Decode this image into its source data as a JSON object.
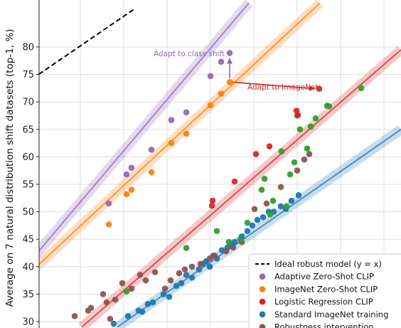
{
  "chart_data": {
    "type": "scatter",
    "ylabel": "Average on 7 natural distribution shift datasets (top-1, %)",
    "ylim": [
      29,
      87
    ],
    "yticks": [
      30,
      35,
      40,
      45,
      50,
      55,
      60,
      65,
      70,
      75,
      80
    ],
    "grid": true,
    "legend_position": "bottom-right",
    "colors": {
      "adaptive": "#9467bd",
      "zeroshot": "#ff7f0e",
      "logistic": "#d62728",
      "standard": "#1f77b4",
      "robust": "#8c564b",
      "green": "#2ca02c",
      "ideal": "#000000"
    },
    "ideal_line": {
      "name": "Ideal robust model (y = x)",
      "points": [
        [
          0,
          70.2
        ],
        [
          190,
          87
        ]
      ]
    },
    "series": [
      {
        "name": "Adaptive Zero-Shot CLIP",
        "key": "adaptive",
        "fit": [
          [
            0,
            34.5
          ],
          [
            350,
            88
          ]
        ],
        "points": [
          [
            153,
            51.5
          ],
          [
            178,
            56.8
          ],
          [
            185,
            58.0
          ],
          [
            213,
            61.3
          ],
          [
            241,
            66.7
          ],
          [
            262,
            68.1
          ],
          [
            296,
            74.7
          ],
          [
            311,
            77.3
          ],
          [
            323,
            78.9
          ]
        ]
      },
      {
        "name": "ImageNet Zero-Shot CLIP",
        "key": "zeroshot",
        "fit": [
          [
            0,
            33.8
          ],
          [
            450,
            88
          ]
        ],
        "points": [
          [
            153,
            47.7
          ],
          [
            178,
            53.2
          ],
          [
            185,
            54.0
          ],
          [
            213,
            57.2
          ],
          [
            241,
            62.5
          ],
          [
            262,
            64.2
          ],
          [
            296,
            69.4
          ],
          [
            311,
            71.5
          ],
          [
            323,
            73.6
          ]
        ]
      },
      {
        "name": "Logistic Regression CLIP",
        "key": "logistic",
        "fit": [
          [
            115,
            29
          ],
          [
            564,
            79.5
          ]
        ],
        "points": [
          [
            298,
            51.1
          ],
          [
            299,
            52.0
          ],
          [
            330,
            55.5
          ],
          [
            360,
            60.5
          ],
          [
            379,
            61.9
          ],
          [
            417,
            68.4
          ],
          [
            419,
            67.6
          ],
          [
            449,
            72.4
          ]
        ]
      },
      {
        "name": "Standard ImageNet training",
        "key": "standard",
        "fit": [
          [
            165,
            29
          ],
          [
            564,
            65.0
          ]
        ],
        "points": [
          [
            160,
            29.6
          ],
          [
            180,
            31.0
          ],
          [
            195,
            32.0
          ],
          [
            200,
            31.8
          ],
          [
            208,
            33.2
          ],
          [
            215,
            33.5
          ],
          [
            230,
            35.0
          ],
          [
            238,
            34.5
          ],
          [
            248,
            36.5
          ],
          [
            255,
            37.0
          ],
          [
            262,
            38.5
          ],
          [
            270,
            38.0
          ],
          [
            280,
            39.5
          ],
          [
            285,
            40.5
          ],
          [
            290,
            41.0
          ],
          [
            295,
            40.0
          ],
          [
            300,
            42.0
          ],
          [
            305,
            41.5
          ],
          [
            312,
            43.0
          ],
          [
            320,
            43.5
          ],
          [
            325,
            44.0
          ],
          [
            330,
            44.5
          ],
          [
            340,
            45.5
          ],
          [
            348,
            46.5
          ],
          [
            355,
            47.5
          ],
          [
            362,
            48.5
          ],
          [
            370,
            49.0
          ],
          [
            378,
            50.0
          ],
          [
            385,
            50.0
          ],
          [
            395,
            51.0
          ],
          [
            402,
            50.5
          ],
          [
            410,
            52.0
          ],
          [
            420,
            53.0
          ]
        ]
      },
      {
        "name": "Robustness intervention",
        "key": "robust",
        "fit": null,
        "points": [
          [
            105,
            31.0
          ],
          [
            124,
            32.0
          ],
          [
            128,
            32.5
          ],
          [
            145,
            35.0
          ],
          [
            150,
            33.5
          ],
          [
            155,
            30.5
          ],
          [
            162,
            34.0
          ],
          [
            172,
            37.0
          ],
          [
            185,
            36.0
          ],
          [
            197,
            38.5
          ],
          [
            205,
            37.5
          ],
          [
            218,
            39.0
          ],
          [
            232,
            36.0
          ],
          [
            240,
            37.5
          ],
          [
            252,
            38.8
          ],
          [
            260,
            39.5
          ],
          [
            270,
            40.0
          ],
          [
            282,
            40.5
          ],
          [
            295,
            41.5
          ],
          [
            302,
            42.0
          ],
          [
            318,
            42.8
          ],
          [
            328,
            43.5
          ],
          [
            340,
            44.5
          ],
          [
            358,
            50.5
          ],
          [
            375,
            51.5
          ],
          [
            395,
            54.5
          ],
          [
            418,
            57.5
          ],
          [
            428,
            59.5
          ],
          [
            435,
            60.5
          ]
        ]
      },
      {
        "name": "",
        "key": "green",
        "fit": null,
        "points": [
          [
            178,
            35.5
          ],
          [
            262,
            43.4
          ],
          [
            305,
            46.5
          ],
          [
            322,
            44.5
          ],
          [
            338,
            45.0
          ],
          [
            348,
            48.0
          ],
          [
            368,
            54.0
          ],
          [
            372,
            56.0
          ],
          [
            380,
            49.5
          ],
          [
            384,
            52.0
          ],
          [
            396,
            61.0
          ],
          [
            403,
            51.0
          ],
          [
            408,
            56.8
          ],
          [
            414,
            59.0
          ],
          [
            418,
            67.5
          ],
          [
            422,
            65.0
          ],
          [
            432,
            61.5
          ],
          [
            437,
            65.5
          ],
          [
            444,
            67.0
          ],
          [
            460,
            69.3
          ],
          [
            463,
            69.2
          ],
          [
            508,
            72.5
          ]
        ]
      }
    ],
    "annotations": [
      {
        "text": "Adapt to class shift",
        "key": "adaptive"
      },
      {
        "text": "Adapt to ImageNet",
        "key": "logistic"
      }
    ],
    "legend": [
      {
        "label": "Ideal robust model (y = x)",
        "key": "ideal",
        "marker": "dashed-line"
      },
      {
        "label": "Adaptive Zero-Shot CLIP",
        "key": "adaptive",
        "marker": "dot"
      },
      {
        "label": "ImageNet Zero-Shot CLIP",
        "key": "zeroshot",
        "marker": "dot"
      },
      {
        "label": "Logistic Regression CLIP",
        "key": "logistic",
        "marker": "dot"
      },
      {
        "label": "Standard ImageNet training",
        "key": "standard",
        "marker": "dot"
      },
      {
        "label": "Robustness intervention",
        "key": "robust",
        "marker": "dot"
      }
    ]
  }
}
